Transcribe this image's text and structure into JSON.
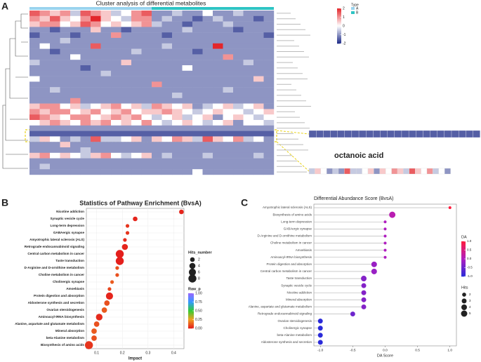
{
  "chart_data": [
    {
      "type": "heatmap",
      "panel": "A",
      "title": "Cluster analysis of differential metabolites",
      "legend_title": "Type",
      "groups": [
        {
          "name": "A",
          "color": "#9ad3ee"
        },
        {
          "name": "B",
          "color": "#2ec4c4"
        }
      ],
      "column_group": [
        0,
        0,
        0,
        0,
        0,
        0,
        0,
        0,
        0,
        0,
        0,
        0,
        1,
        1,
        1,
        1,
        1,
        1,
        1,
        1,
        1,
        1,
        1,
        1
      ],
      "clim": [
        -2,
        2
      ],
      "cticks": [
        2,
        1,
        0,
        -1,
        -2
      ],
      "colors": [
        "#1c2a87",
        "#ffffff",
        "#e3262b"
      ],
      "annotation": "octanoic acid",
      "values": [
        [
          1.5,
          1,
          0.5,
          1,
          -0.5,
          1.5,
          1,
          0.5,
          -0.5,
          0,
          1,
          1.5,
          -1,
          -1,
          -0.5,
          -1,
          -1,
          0,
          -1,
          -1,
          -0.5,
          -1,
          -1,
          -1
        ],
        [
          1,
          0.5,
          1.5,
          0.5,
          0,
          1,
          2,
          0.5,
          0,
          -0.5,
          1,
          1,
          -1,
          -0.5,
          -1,
          -1,
          -1.5,
          -1,
          -0.5,
          -1,
          -1,
          -1,
          -1.5,
          -1
        ],
        [
          0.5,
          1,
          1,
          0,
          0.5,
          1.5,
          1,
          0,
          0.5,
          0,
          0.5,
          1,
          -0.5,
          -1,
          -1,
          -1.5,
          -1,
          -1,
          -1,
          -0.5,
          -1,
          -1,
          -1,
          -1
        ],
        [
          -1,
          -1,
          -1.5,
          -1,
          -1,
          -1,
          0.5,
          -1,
          -1,
          -1.5,
          -1,
          -1,
          -1,
          -1,
          -1,
          -0.5,
          -1,
          -1,
          -1,
          -1,
          -1.5,
          -1,
          -1,
          -1
        ],
        [
          -1.5,
          -1,
          -1,
          -1,
          -1.5,
          -1,
          -1,
          -1,
          1,
          -1,
          -1,
          -1,
          -1,
          -1.5,
          -1,
          -1,
          -1,
          -1,
          -1,
          -1,
          -1,
          -1,
          -1,
          -1.5
        ],
        [
          -1,
          -1,
          -1,
          -0.5,
          -1,
          -1,
          -1,
          -1,
          -1,
          -1,
          -1,
          -1,
          -1,
          -1,
          -1,
          -1,
          -1,
          -1,
          -1,
          -1,
          -1,
          -1,
          -1,
          -1
        ],
        [
          -1,
          0,
          -1,
          -1,
          -1,
          -1,
          1.5,
          -1,
          -1,
          -1,
          -1,
          -1,
          -1,
          -0.5,
          -1,
          -1,
          -1,
          -1,
          2,
          -1,
          -1,
          -1,
          -1,
          -1
        ],
        [
          -1,
          -1,
          -1.5,
          -1,
          -1,
          -1,
          -1,
          -1,
          -1,
          -1,
          -0.5,
          -1,
          -1,
          -1,
          -1,
          -1,
          -1.5,
          -1,
          -1,
          -1,
          -1,
          -1,
          -1,
          -1
        ],
        [
          -1,
          -1,
          -1,
          -1,
          0,
          -1,
          -1,
          -1,
          -1,
          -1,
          -1,
          -1,
          -1,
          -1,
          -1,
          -1,
          -1,
          -1,
          -1,
          1,
          -1,
          -1,
          -1,
          -1
        ],
        [
          -0.5,
          -1,
          -1,
          -1,
          -1,
          -1,
          -1,
          -1,
          -1,
          0.5,
          -1,
          -1,
          -1,
          -1,
          -1,
          -1,
          -1,
          -1,
          -1,
          -1,
          -1,
          -0.5,
          -1,
          -1
        ],
        [
          -1,
          -1,
          -1,
          -1,
          -1,
          -1.5,
          -1,
          -1,
          -1,
          -1,
          -1,
          -1,
          -1,
          -1,
          -1,
          0,
          -1,
          -1,
          -1,
          -1,
          -1,
          -1,
          -1,
          -1
        ],
        [
          -1,
          -1,
          -1,
          -1,
          -1,
          -1,
          -1,
          -0.5,
          -1,
          -1,
          -1,
          -1,
          -1,
          -1,
          -1,
          -1,
          -1,
          -1,
          -1,
          -1,
          -1,
          -1,
          -1,
          -1
        ],
        [
          0,
          -1,
          -1,
          -1,
          -1,
          -1,
          -1,
          -1,
          -1,
          -1,
          -1,
          -1,
          -1,
          -1,
          -1,
          -1,
          -1,
          -1,
          -1,
          -1,
          -1,
          -1,
          0.5,
          -1
        ],
        [
          -1,
          -1,
          -1,
          -1,
          -1,
          -1,
          -1,
          -1,
          -1,
          -1,
          -1,
          -1,
          1,
          -1,
          -1,
          -1,
          -1,
          -1,
          -1,
          -1,
          -1,
          -1,
          -1,
          -1
        ],
        [
          -1,
          -1,
          -0.5,
          -1,
          -1,
          -1,
          -1,
          -1,
          -1,
          -1,
          -1,
          -1,
          -1,
          -1,
          -1,
          -1,
          -1,
          -1,
          -1,
          -0.5,
          -1,
          -1,
          -1,
          -1
        ],
        [
          -1,
          -1,
          -1,
          -1,
          -1,
          -1,
          -1,
          -1,
          -1,
          -1,
          -1,
          -1,
          -1,
          -1,
          -0.5,
          -1,
          -1,
          -1,
          -1,
          -1,
          -1,
          -1,
          -1,
          -1
        ],
        [
          -1,
          -1,
          -1,
          -1,
          1,
          -1,
          -1,
          -1,
          -1,
          -1,
          -1,
          -1,
          -1,
          -1,
          -1,
          -1,
          -1,
          -1,
          -1,
          -1,
          -1,
          -1,
          -1,
          -1
        ],
        [
          0.5,
          1,
          1,
          0,
          0.5,
          -0.5,
          0,
          0.5,
          1,
          0,
          0.5,
          -0.5,
          1,
          0.5,
          0,
          0.5,
          -1,
          -0.5,
          0,
          0.5,
          -0.5,
          0,
          0.5,
          -1
        ],
        [
          1,
          0.5,
          1,
          1,
          0,
          0.5,
          1,
          0,
          0.5,
          1,
          0,
          0.5,
          0.5,
          1,
          0.5,
          0,
          -0.5,
          0,
          0.5,
          0,
          0,
          -0.5,
          0,
          0.5
        ],
        [
          1.5,
          1,
          0.5,
          0,
          1,
          1,
          0,
          0.5,
          1,
          0.5,
          1,
          0,
          -0.5,
          0,
          0.5,
          -0.5,
          0,
          0.5,
          -1,
          0,
          0.5,
          0,
          -0.5,
          0
        ],
        [
          0,
          0.5,
          1,
          0.5,
          0,
          1,
          0.5,
          1,
          0,
          0.5,
          0,
          1,
          0,
          -0.5,
          0,
          0.5,
          0,
          -0.5,
          0,
          0.5,
          -1,
          0,
          0,
          -0.5
        ],
        [
          -1,
          -1,
          -1,
          -1,
          -1,
          -1,
          -1,
          -1,
          -1,
          -1,
          -1,
          -1,
          -1,
          -1,
          -1,
          -1,
          -1,
          -1,
          -1,
          -1,
          -1,
          -1,
          -1,
          -1
        ],
        [
          -1.5,
          -1.5,
          -1.5,
          -1.5,
          -1.5,
          -1.5,
          -1.5,
          -1.5,
          -1.5,
          -1.5,
          -1.5,
          -1.5,
          -1.5,
          -1.5,
          -1.5,
          -1.5,
          -1.5,
          -1.5,
          -1.5,
          -1.5,
          -1.5,
          -1.5,
          -1.5,
          -1.5
        ],
        [
          -0.5,
          0.5,
          0,
          -1,
          -0.5,
          -1,
          1.5,
          -0.5,
          -0.5,
          0,
          0.5,
          -1,
          0.5,
          0,
          1,
          0.5,
          -0.5,
          1.5,
          0.5,
          0,
          1,
          -0.5,
          0,
          -1
        ],
        [
          -1,
          -1,
          -1,
          0.5,
          -1,
          -1,
          -1,
          -1,
          -1,
          -1,
          -1,
          -1,
          -1,
          -1,
          -1,
          -1,
          -1,
          -1,
          -1,
          -1,
          -1,
          -1,
          -1,
          -1
        ],
        [
          -1,
          -1,
          -1,
          -1,
          -1,
          -0.5,
          -1,
          -1,
          -1,
          -1,
          -1,
          -1,
          -1,
          -1,
          -1,
          -1,
          -1,
          -1,
          -1,
          -1,
          -1,
          -1,
          -1,
          -1
        ],
        [
          0.5,
          1,
          0,
          0.5,
          0,
          -0.5,
          0.5,
          1,
          0,
          -0.5,
          0,
          0.5,
          -1,
          -0.5,
          -1,
          -1,
          -1,
          -0.5,
          -1,
          -1,
          -1,
          -1,
          -0.5,
          -1
        ],
        [
          -1,
          -1,
          -1,
          -1,
          -1,
          -1,
          -1,
          -1,
          -1,
          -1,
          -1,
          -1,
          -1,
          -1,
          -1,
          -1,
          -1,
          -1,
          -1,
          -1,
          -1,
          -1,
          -1,
          -1
        ],
        [
          -1,
          -0.5,
          -1,
          -1,
          -1,
          -1,
          -1,
          -1,
          -1,
          -1,
          -1,
          -1,
          -1,
          -1,
          -1,
          -1,
          -1,
          -1,
          -1,
          -1,
          -1,
          -1,
          -1,
          -1
        ],
        [
          -1,
          -1,
          -1,
          -1,
          -1,
          -1,
          -1,
          -1,
          -1,
          -1,
          -1,
          -1,
          -1,
          -1,
          -1,
          -1,
          0,
          -1,
          -1,
          -1,
          -1,
          -1,
          -1,
          -1
        ]
      ]
    },
    {
      "type": "bubble",
      "panel": "B",
      "title": "Statistics of Pathway Enrichment (BvsA)",
      "x_label": "Impact",
      "categories": [
        "Nicotine addiction",
        "Synaptic vesicle cycle",
        "Long-term depression",
        "GABAergic synapse",
        "Amyotrophic lateral sclerosis (ALS)",
        "Retrograde endocannabinoid signaling",
        "Central carbon metabolism in cancer",
        "Taste transduction",
        "D-Arginine and D-ornithine metabolism",
        "Choline metabolism in cancer",
        "Cholinergic synapse",
        "Amoebiasis",
        "Protein digestion and absorption",
        "Aldosterone synthesis and secretion",
        "Ovarian steroidogenesis",
        "Aminoacyl-tRNA biosynthesis",
        "Alanine, aspartate and glutamate metabolism",
        "Mineral absorption",
        "beta-Alanine metabolism",
        "Biosynthesis of amino acids"
      ],
      "values": [
        0.43,
        0.25,
        0.22,
        0.22,
        0.21,
        0.21,
        0.19,
        0.19,
        0.18,
        0.18,
        0.16,
        0.15,
        0.15,
        0.14,
        0.13,
        0.11,
        0.1,
        0.09,
        0.09,
        0.07
      ],
      "hits": [
        2,
        2,
        1,
        1,
        1,
        4,
        8,
        8,
        1,
        1,
        1,
        1,
        6,
        3,
        3,
        5,
        3,
        3,
        3,
        8
      ],
      "raw_p": [
        0.02,
        0.02,
        0.05,
        0.05,
        0.03,
        0.02,
        0.01,
        0.01,
        0.1,
        0.1,
        0.12,
        0.08,
        0.02,
        0.1,
        0.12,
        0.03,
        0.1,
        0.12,
        0.1,
        0.05
      ],
      "xlim": [
        0.06,
        0.44
      ],
      "xticks": [
        0.1,
        0.2,
        0.3,
        0.4
      ],
      "size_legend_title": "Hits_number",
      "size_legend": [
        2,
        4,
        6,
        8
      ],
      "color_legend_title": "Raw_p",
      "clim": [
        0,
        1
      ],
      "cticks": [
        {
          "value": 0,
          "label": "0.00"
        },
        0.25,
        {
          "value": 0.5,
          "label": "0.50"
        },
        0.75,
        {
          "value": 1,
          "label": "1.00"
        }
      ],
      "colorscale": [
        "#e41a1c",
        "#f0a020",
        "#33cc33",
        "#3399ff",
        "#9966ff"
      ]
    },
    {
      "type": "lollipop",
      "panel": "C",
      "title": "Differential Abundance Score (BvsA)",
      "x_label": "DA Score",
      "categories": [
        "Amyotrophic lateral sclerosis (ALS)",
        "Biosynthesis of amino acids",
        "Long-term depression",
        "GABAergic synapse",
        "D-Arginine and D-ornithine metabolism",
        "Choline metabolism in cancer",
        "Amoebiasis",
        "Aminoacyl-tRNA biosynthesis",
        "Protein digestion and absorption",
        "Central carbon metabolism in cancer",
        "Taste transduction",
        "Synaptic vesicle cycle",
        "Nicotine addiction",
        "Mineral absorption",
        "Alanine, aspartate and glutamate metabolism",
        "Retrograde endocannabinoid signaling",
        "Ovarian steroidogenesis",
        "Cholinergic synapse",
        "beta-Alanine metabolism",
        "Aldosterone synthesis and secretion"
      ],
      "values": [
        1,
        0.11,
        0,
        0,
        0,
        0,
        0,
        0,
        -0.17,
        -0.17,
        -0.33,
        -0.33,
        -0.33,
        -0.33,
        -0.33,
        -0.5,
        -1,
        -1,
        -1,
        -1
      ],
      "hits": [
        1,
        5,
        1,
        1,
        1,
        1,
        1,
        1,
        4,
        4,
        4,
        3,
        3,
        3,
        3,
        3,
        3,
        3,
        3,
        3
      ],
      "xlim": [
        -1.1,
        1.1
      ],
      "xticks": [
        {
          "value": -1,
          "label": "-1.0"
        },
        -0.5,
        {
          "value": 0,
          "label": "0.0"
        },
        0.5,
        {
          "value": 1,
          "label": "1.0"
        }
      ],
      "color_legend_title": "DA",
      "clim": [
        -1,
        1
      ],
      "cticks": [
        {
          "value": 1,
          "label": "1.0"
        },
        0.5,
        {
          "value": 0,
          "label": "0.0"
        },
        -0.5,
        {
          "value": -1,
          "label": "-1.0"
        }
      ],
      "colorscale": [
        "#2b2bd9",
        "#b01ec0",
        "#ff1a3c"
      ],
      "size_legend_title": "Hits",
      "size_legend": [
        2,
        3,
        4,
        5
      ]
    }
  ]
}
